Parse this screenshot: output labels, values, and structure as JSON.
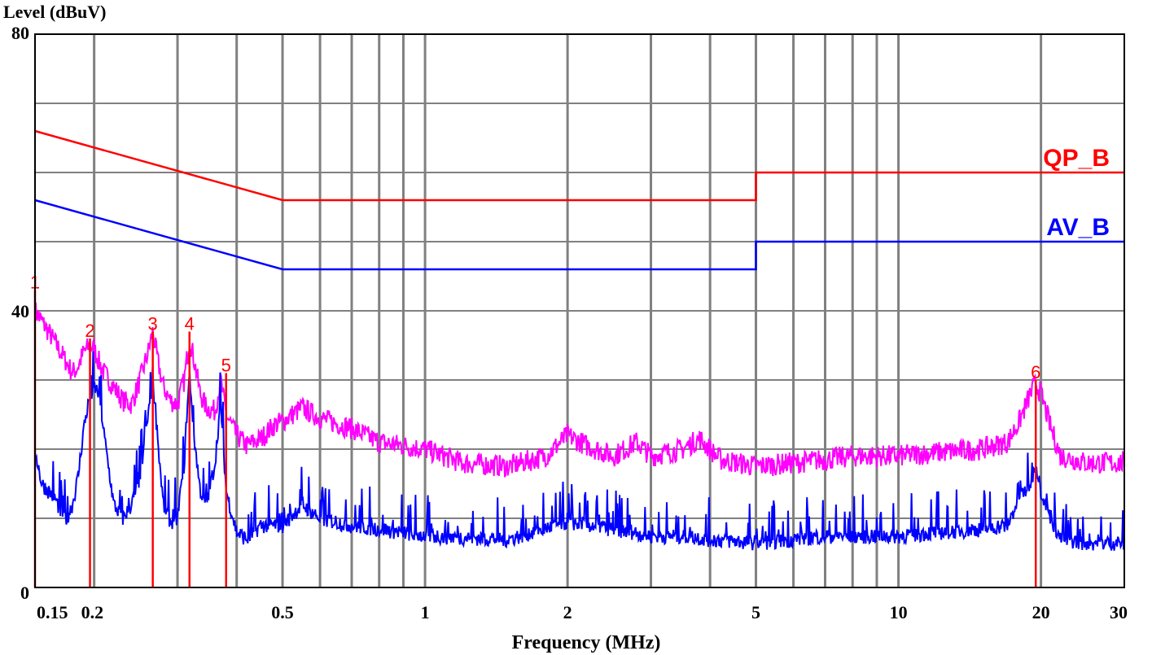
{
  "chart_data": {
    "type": "line",
    "title": "",
    "xlabel": "Frequency (MHz)",
    "ylabel": "Level (dBuV)",
    "x_scale": "log",
    "xlim": [
      0.15,
      30
    ],
    "ylim": [
      0,
      80
    ],
    "grid": true,
    "y_ticks": [
      0,
      40,
      80
    ],
    "x_ticks": [
      {
        "value": 0.15,
        "label": "0.15"
      },
      {
        "value": 0.2,
        "label": "0.2"
      },
      {
        "value": 0.5,
        "label": "0.5"
      },
      {
        "value": 1,
        "label": "1"
      },
      {
        "value": 2,
        "label": "2"
      },
      {
        "value": 5,
        "label": "5"
      },
      {
        "value": 10,
        "label": "10"
      },
      {
        "value": 20,
        "label": "20"
      },
      {
        "value": 30,
        "label": "30"
      }
    ],
    "limit_lines": [
      {
        "name": "QP_B",
        "color": "#ff0000",
        "points": [
          [
            0.15,
            66
          ],
          [
            0.5,
            56
          ],
          [
            5,
            56
          ],
          [
            5,
            60
          ],
          [
            30,
            60
          ]
        ]
      },
      {
        "name": "AV_B",
        "color": "#0000ff",
        "points": [
          [
            0.15,
            56
          ],
          [
            0.5,
            46
          ],
          [
            5,
            46
          ],
          [
            5,
            50
          ],
          [
            30,
            50
          ]
        ]
      }
    ],
    "series": [
      {
        "color": "#ff00ff",
        "points": [
          [
            0.15,
            40
          ],
          [
            0.155,
            38.5
          ],
          [
            0.16,
            37
          ],
          [
            0.165,
            35.5
          ],
          [
            0.17,
            34
          ],
          [
            0.175,
            32.5
          ],
          [
            0.18,
            31
          ],
          [
            0.185,
            32
          ],
          [
            0.19,
            34
          ],
          [
            0.196,
            35
          ],
          [
            0.2,
            34.5
          ],
          [
            0.205,
            32.5
          ],
          [
            0.21,
            31
          ],
          [
            0.22,
            29
          ],
          [
            0.23,
            27
          ],
          [
            0.24,
            26.5
          ],
          [
            0.25,
            30
          ],
          [
            0.26,
            34
          ],
          [
            0.266,
            37
          ],
          [
            0.272,
            33
          ],
          [
            0.28,
            29
          ],
          [
            0.29,
            27
          ],
          [
            0.3,
            26.5
          ],
          [
            0.31,
            30
          ],
          [
            0.318,
            36
          ],
          [
            0.325,
            33
          ],
          [
            0.335,
            28
          ],
          [
            0.345,
            26
          ],
          [
            0.36,
            25.5
          ],
          [
            0.37,
            30
          ],
          [
            0.38,
            25
          ],
          [
            0.4,
            22
          ],
          [
            0.42,
            20.5
          ],
          [
            0.45,
            21.5
          ],
          [
            0.48,
            23.5
          ],
          [
            0.5,
            24
          ],
          [
            0.55,
            26
          ],
          [
            0.6,
            24.5
          ],
          [
            0.7,
            23
          ],
          [
            0.8,
            21
          ],
          [
            0.9,
            20.5
          ],
          [
            1,
            20
          ],
          [
            1.2,
            18
          ],
          [
            1.5,
            17.5
          ],
          [
            1.8,
            19
          ],
          [
            2,
            22
          ],
          [
            2.2,
            20.5
          ],
          [
            2.5,
            19
          ],
          [
            2.8,
            21
          ],
          [
            3,
            19
          ],
          [
            3.5,
            20
          ],
          [
            3.8,
            21.5
          ],
          [
            4.2,
            18.5
          ],
          [
            5,
            17.5
          ],
          [
            6,
            18
          ],
          [
            7,
            18.5
          ],
          [
            8,
            19
          ],
          [
            10,
            19
          ],
          [
            12,
            19.5
          ],
          [
            15,
            20
          ],
          [
            17,
            21
          ],
          [
            18,
            24
          ],
          [
            19,
            28
          ],
          [
            19.5,
            29.5
          ],
          [
            20,
            28
          ],
          [
            21,
            23
          ],
          [
            22,
            19
          ],
          [
            25,
            18
          ],
          [
            30,
            18
          ]
        ]
      },
      {
        "color": "#0000ff",
        "points": [
          [
            0.15,
            20
          ],
          [
            0.155,
            15
          ],
          [
            0.16,
            14
          ],
          [
            0.165,
            13
          ],
          [
            0.17,
            11
          ],
          [
            0.175,
            10
          ],
          [
            0.18,
            12
          ],
          [
            0.185,
            16
          ],
          [
            0.19,
            23
          ],
          [
            0.195,
            27
          ],
          [
            0.2,
            29
          ],
          [
            0.205,
            28
          ],
          [
            0.21,
            22
          ],
          [
            0.22,
            12
          ],
          [
            0.23,
            10
          ],
          [
            0.24,
            12
          ],
          [
            0.25,
            16
          ],
          [
            0.26,
            25
          ],
          [
            0.266,
            30
          ],
          [
            0.272,
            22
          ],
          [
            0.28,
            12
          ],
          [
            0.29,
            9.5
          ],
          [
            0.3,
            10
          ],
          [
            0.31,
            18
          ],
          [
            0.318,
            31
          ],
          [
            0.325,
            22
          ],
          [
            0.335,
            14
          ],
          [
            0.345,
            12
          ],
          [
            0.36,
            18
          ],
          [
            0.37,
            27
          ],
          [
            0.38,
            14
          ],
          [
            0.4,
            8
          ],
          [
            0.42,
            7
          ],
          [
            0.45,
            9
          ],
          [
            0.5,
            9
          ],
          [
            0.55,
            12
          ],
          [
            0.6,
            10
          ],
          [
            0.7,
            9
          ],
          [
            0.8,
            8.5
          ],
          [
            1,
            7.5
          ],
          [
            1.5,
            7
          ],
          [
            2,
            9.5
          ],
          [
            2.5,
            8.5
          ],
          [
            3,
            7.5
          ],
          [
            3.5,
            7.5
          ],
          [
            4,
            7
          ],
          [
            5,
            6.5
          ],
          [
            6,
            7
          ],
          [
            7,
            7.5
          ],
          [
            8,
            7.5
          ],
          [
            10,
            7.5
          ],
          [
            12,
            8
          ],
          [
            15,
            8.5
          ],
          [
            17,
            9
          ],
          [
            18,
            13
          ],
          [
            19,
            15
          ],
          [
            19.5,
            18
          ],
          [
            20,
            14
          ],
          [
            21,
            10
          ],
          [
            22,
            7
          ],
          [
            25,
            6.5
          ],
          [
            30,
            6.5
          ]
        ]
      }
    ],
    "markers": [
      {
        "label": "1",
        "x": 0.15,
        "y": 43
      },
      {
        "label": "2",
        "x": 0.196,
        "y": 36
      },
      {
        "label": "3",
        "x": 0.266,
        "y": 37
      },
      {
        "label": "4",
        "x": 0.318,
        "y": 37
      },
      {
        "label": "5",
        "x": 0.38,
        "y": 31
      },
      {
        "label": "6",
        "x": 19.5,
        "y": 30
      }
    ]
  }
}
